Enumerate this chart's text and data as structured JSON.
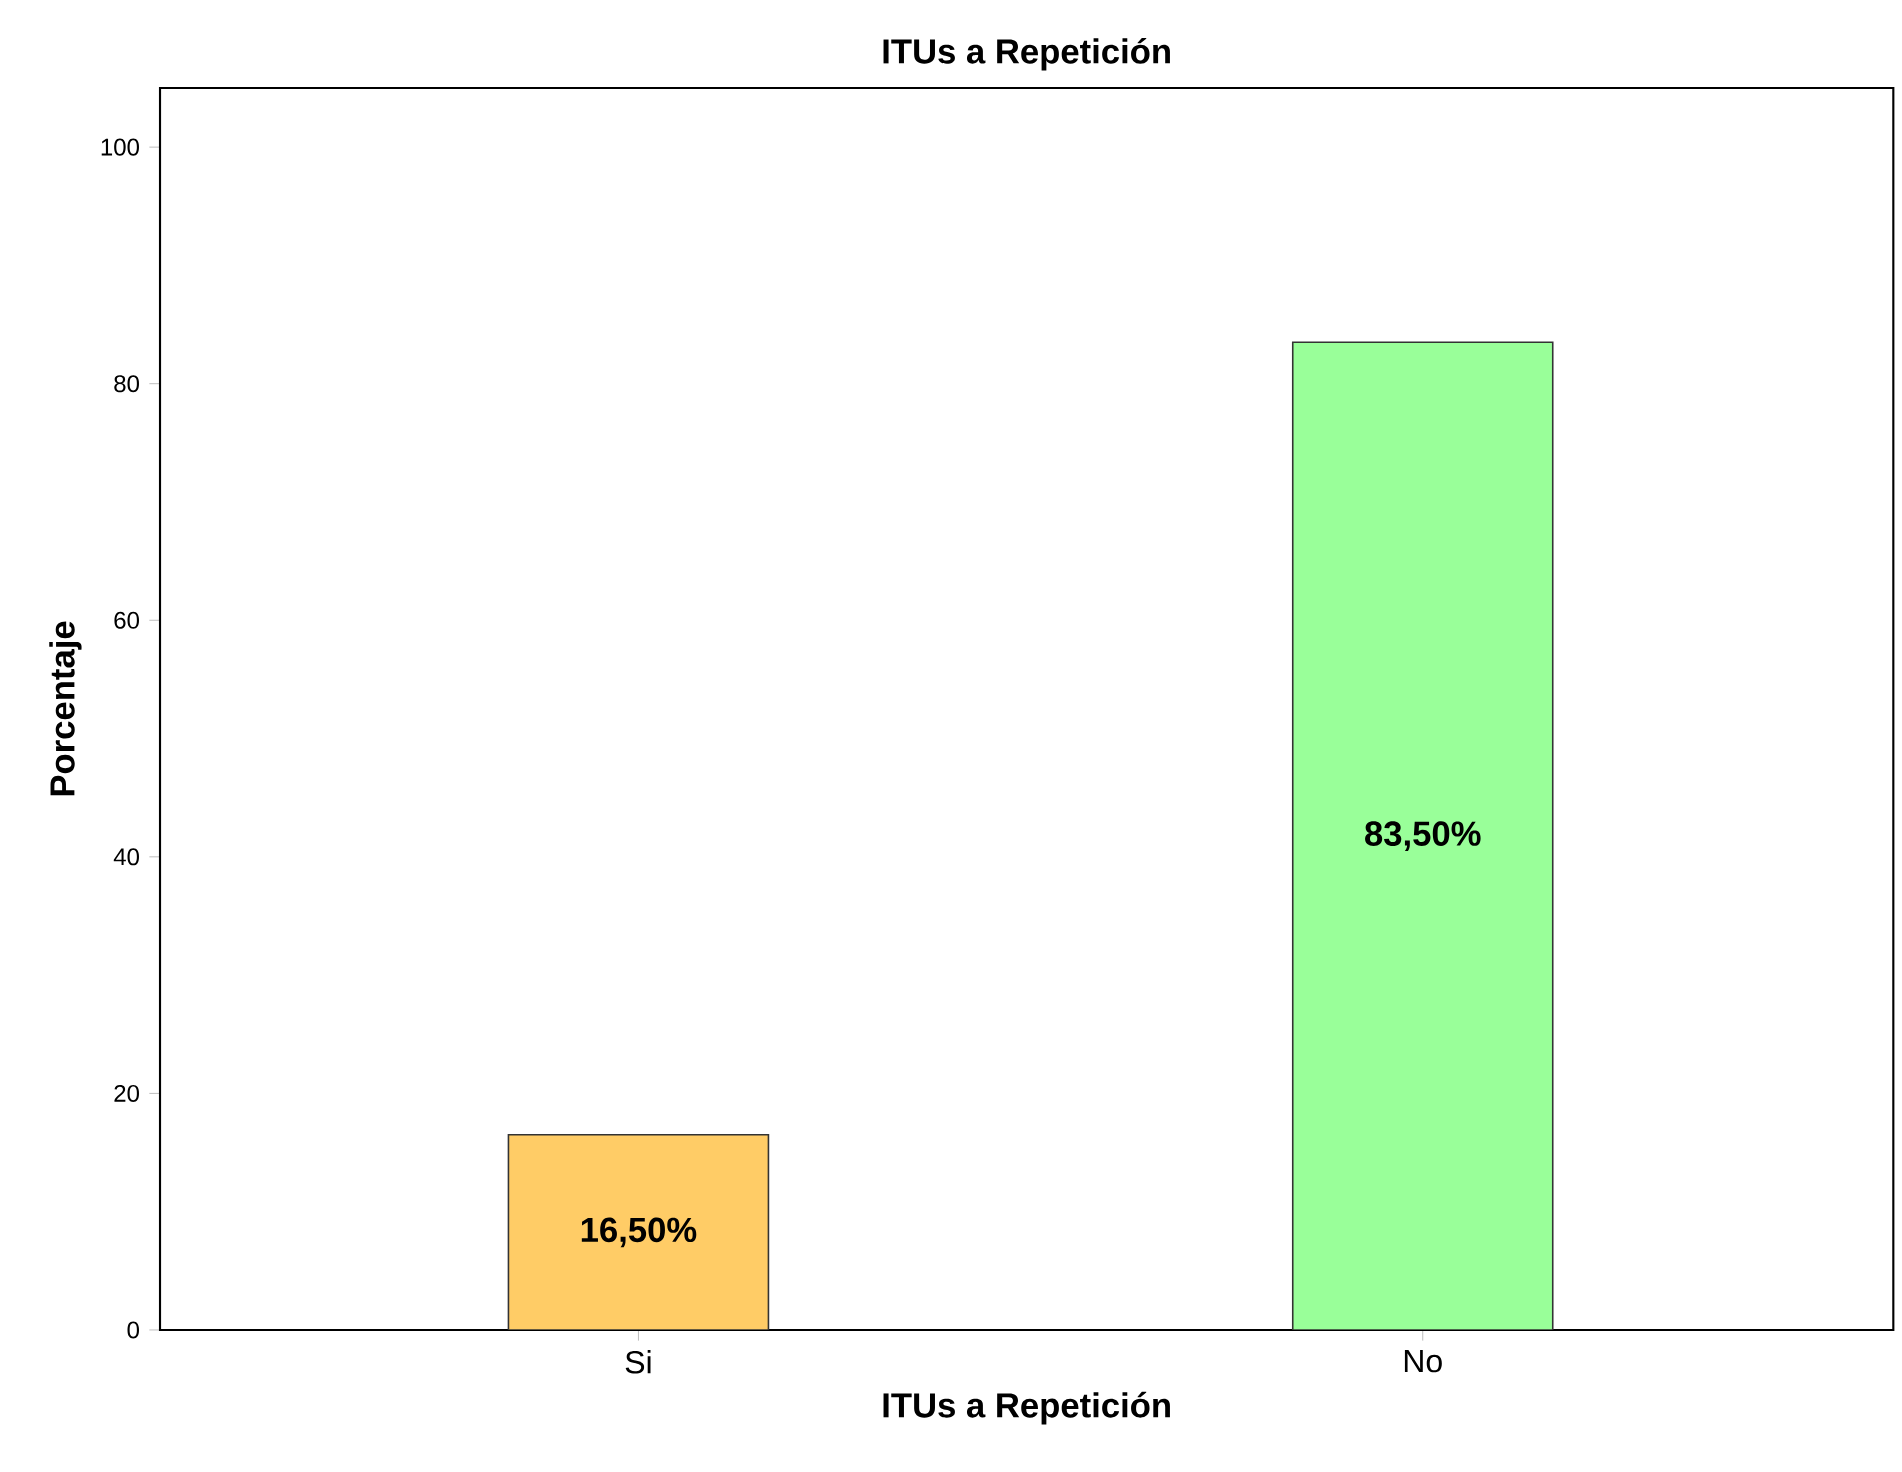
{
  "chart_data": {
    "type": "bar",
    "title": "ITUs a Repetición",
    "xlabel": "ITUs a Repetición",
    "ylabel": "Porcentaje",
    "categories": [
      "Si",
      "No"
    ],
    "values": [
      16.5,
      83.5
    ],
    "colors": [
      "#ffcc66",
      "#99ff99"
    ],
    "value_labels": [
      "16,50%",
      "83,50%"
    ],
    "ylim": [
      0,
      105
    ],
    "yticks": [
      0,
      20,
      40,
      60,
      80,
      100
    ]
  }
}
